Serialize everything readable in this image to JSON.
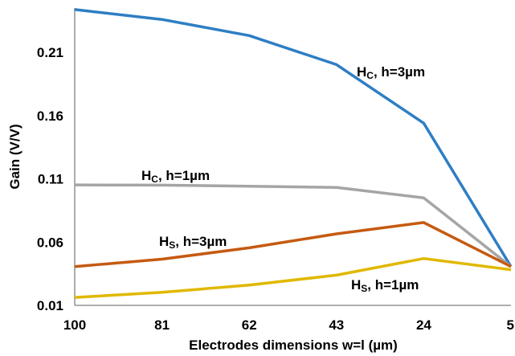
{
  "chart_data": {
    "type": "line",
    "categories": [
      "100",
      "81",
      "62",
      "43",
      "24",
      "5"
    ],
    "xlabel": "Electrodes dimensions w=l (µm)",
    "ylabel": "Gain (V/V)",
    "ylim": [
      0.01,
      0.245
    ],
    "yticks": [
      "0.01",
      "0.06",
      "0.11",
      "0.16",
      "0.21"
    ],
    "grid": false,
    "series": [
      {
        "name": "HC, h=3µm",
        "label": {
          "main": "H",
          "sub": "C",
          "rest": ", h=3µm"
        },
        "color": "#2E7EC4",
        "values": [
          0.2438,
          0.236,
          0.2232,
          0.2003,
          0.154,
          0.0407
        ]
      },
      {
        "name": "HC, h=1µm",
        "label": {
          "main": "H",
          "sub": "C",
          "rest": ", h=1µm"
        },
        "color": "#A5A5A5",
        "values": [
          0.1052,
          0.105,
          0.1042,
          0.1032,
          0.095,
          0.0407
        ]
      },
      {
        "name": "HS, h=3µm",
        "label": {
          "main": "H",
          "sub": "S",
          "rest": ", h=3µm"
        },
        "color": "#C55A11",
        "values": [
          0.0407,
          0.0465,
          0.0555,
          0.0665,
          0.0755,
          0.0407
        ]
      },
      {
        "name": "HS, h=1µm",
        "label": {
          "main": "H",
          "sub": "S",
          "rest": ", h=1µm"
        },
        "color": "#E0B800",
        "values": [
          0.0163,
          0.0203,
          0.0261,
          0.0339,
          0.047,
          0.0382
        ]
      }
    ]
  }
}
